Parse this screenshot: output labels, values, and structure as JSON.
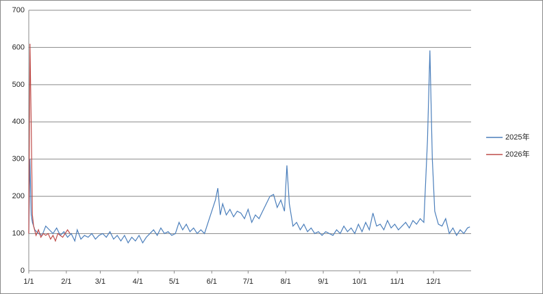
{
  "chart_data": {
    "type": "line",
    "xlim": [
      0,
      365
    ],
    "xticks": [
      {
        "value": 0,
        "label": "1/1"
      },
      {
        "value": 31,
        "label": "2/1"
      },
      {
        "value": 59,
        "label": "3/1"
      },
      {
        "value": 90,
        "label": "4/1"
      },
      {
        "value": 120,
        "label": "5/1"
      },
      {
        "value": 151,
        "label": "6/1"
      },
      {
        "value": 181,
        "label": "7/1"
      },
      {
        "value": 212,
        "label": "8/1"
      },
      {
        "value": 243,
        "label": "9/1"
      },
      {
        "value": 273,
        "label": "10/1"
      },
      {
        "value": 304,
        "label": "11/1"
      },
      {
        "value": 334,
        "label": "12/1"
      }
    ],
    "ylim": [
      0,
      700
    ],
    "yticks": [
      0,
      100,
      200,
      300,
      400,
      500,
      600,
      700
    ],
    "grid": true,
    "legend": "right",
    "series": [
      {
        "name": "2025年",
        "color": "#4a7ebb",
        "x": [
          0,
          1,
          2,
          3,
          5,
          8,
          11,
          14,
          17,
          20,
          23,
          26,
          29,
          32,
          35,
          38,
          40,
          43,
          46,
          49,
          52,
          55,
          58,
          61,
          64,
          67,
          70,
          73,
          76,
          79,
          82,
          85,
          88,
          91,
          94,
          97,
          100,
          103,
          106,
          109,
          112,
          115,
          118,
          121,
          124,
          127,
          130,
          133,
          136,
          139,
          142,
          145,
          148,
          151,
          154,
          156,
          158,
          160,
          163,
          166,
          169,
          172,
          175,
          178,
          181,
          184,
          187,
          190,
          193,
          196,
          199,
          202,
          205,
          208,
          211,
          213,
          215,
          218,
          221,
          224,
          227,
          230,
          233,
          236,
          239,
          242,
          245,
          248,
          251,
          254,
          257,
          260,
          263,
          266,
          269,
          272,
          275,
          278,
          281,
          284,
          287,
          290,
          293,
          296,
          299,
          302,
          305,
          308,
          311,
          314,
          317,
          320,
          323,
          326,
          329,
          331,
          333,
          335,
          338,
          341,
          344,
          347,
          350,
          353,
          356,
          359,
          362,
          364
        ],
        "values": [
          100,
          300,
          150,
          130,
          110,
          100,
          95,
          120,
          110,
          100,
          115,
          95,
          105,
          90,
          100,
          80,
          110,
          85,
          95,
          90,
          100,
          85,
          95,
          100,
          90,
          105,
          85,
          95,
          80,
          95,
          75,
          90,
          80,
          95,
          75,
          90,
          100,
          110,
          95,
          115,
          100,
          105,
          95,
          100,
          130,
          110,
          125,
          105,
          115,
          100,
          110,
          100,
          130,
          160,
          190,
          222,
          150,
          180,
          150,
          165,
          145,
          160,
          155,
          140,
          165,
          130,
          150,
          140,
          160,
          180,
          200,
          205,
          170,
          190,
          160,
          283,
          180,
          120,
          130,
          110,
          125,
          105,
          115,
          100,
          105,
          95,
          105,
          100,
          95,
          110,
          100,
          120,
          105,
          115,
          100,
          125,
          105,
          130,
          110,
          155,
          120,
          125,
          110,
          135,
          115,
          125,
          110,
          120,
          130,
          115,
          135,
          125,
          140,
          130,
          350,
          592,
          300,
          160,
          125,
          120,
          140,
          100,
          115,
          95,
          110,
          100,
          115,
          118
        ]
      },
      {
        "name": "2026年",
        "color": "#be4b48",
        "x": [
          0,
          1,
          2,
          3,
          4,
          6,
          8,
          10,
          12,
          14,
          16,
          18,
          20,
          22,
          24,
          26,
          28,
          30,
          32,
          34
        ],
        "values": [
          100,
          610,
          400,
          150,
          120,
          95,
          110,
          90,
          100,
          95,
          100,
          85,
          95,
          80,
          100,
          95,
          90,
          100,
          110,
          100
        ]
      }
    ]
  }
}
